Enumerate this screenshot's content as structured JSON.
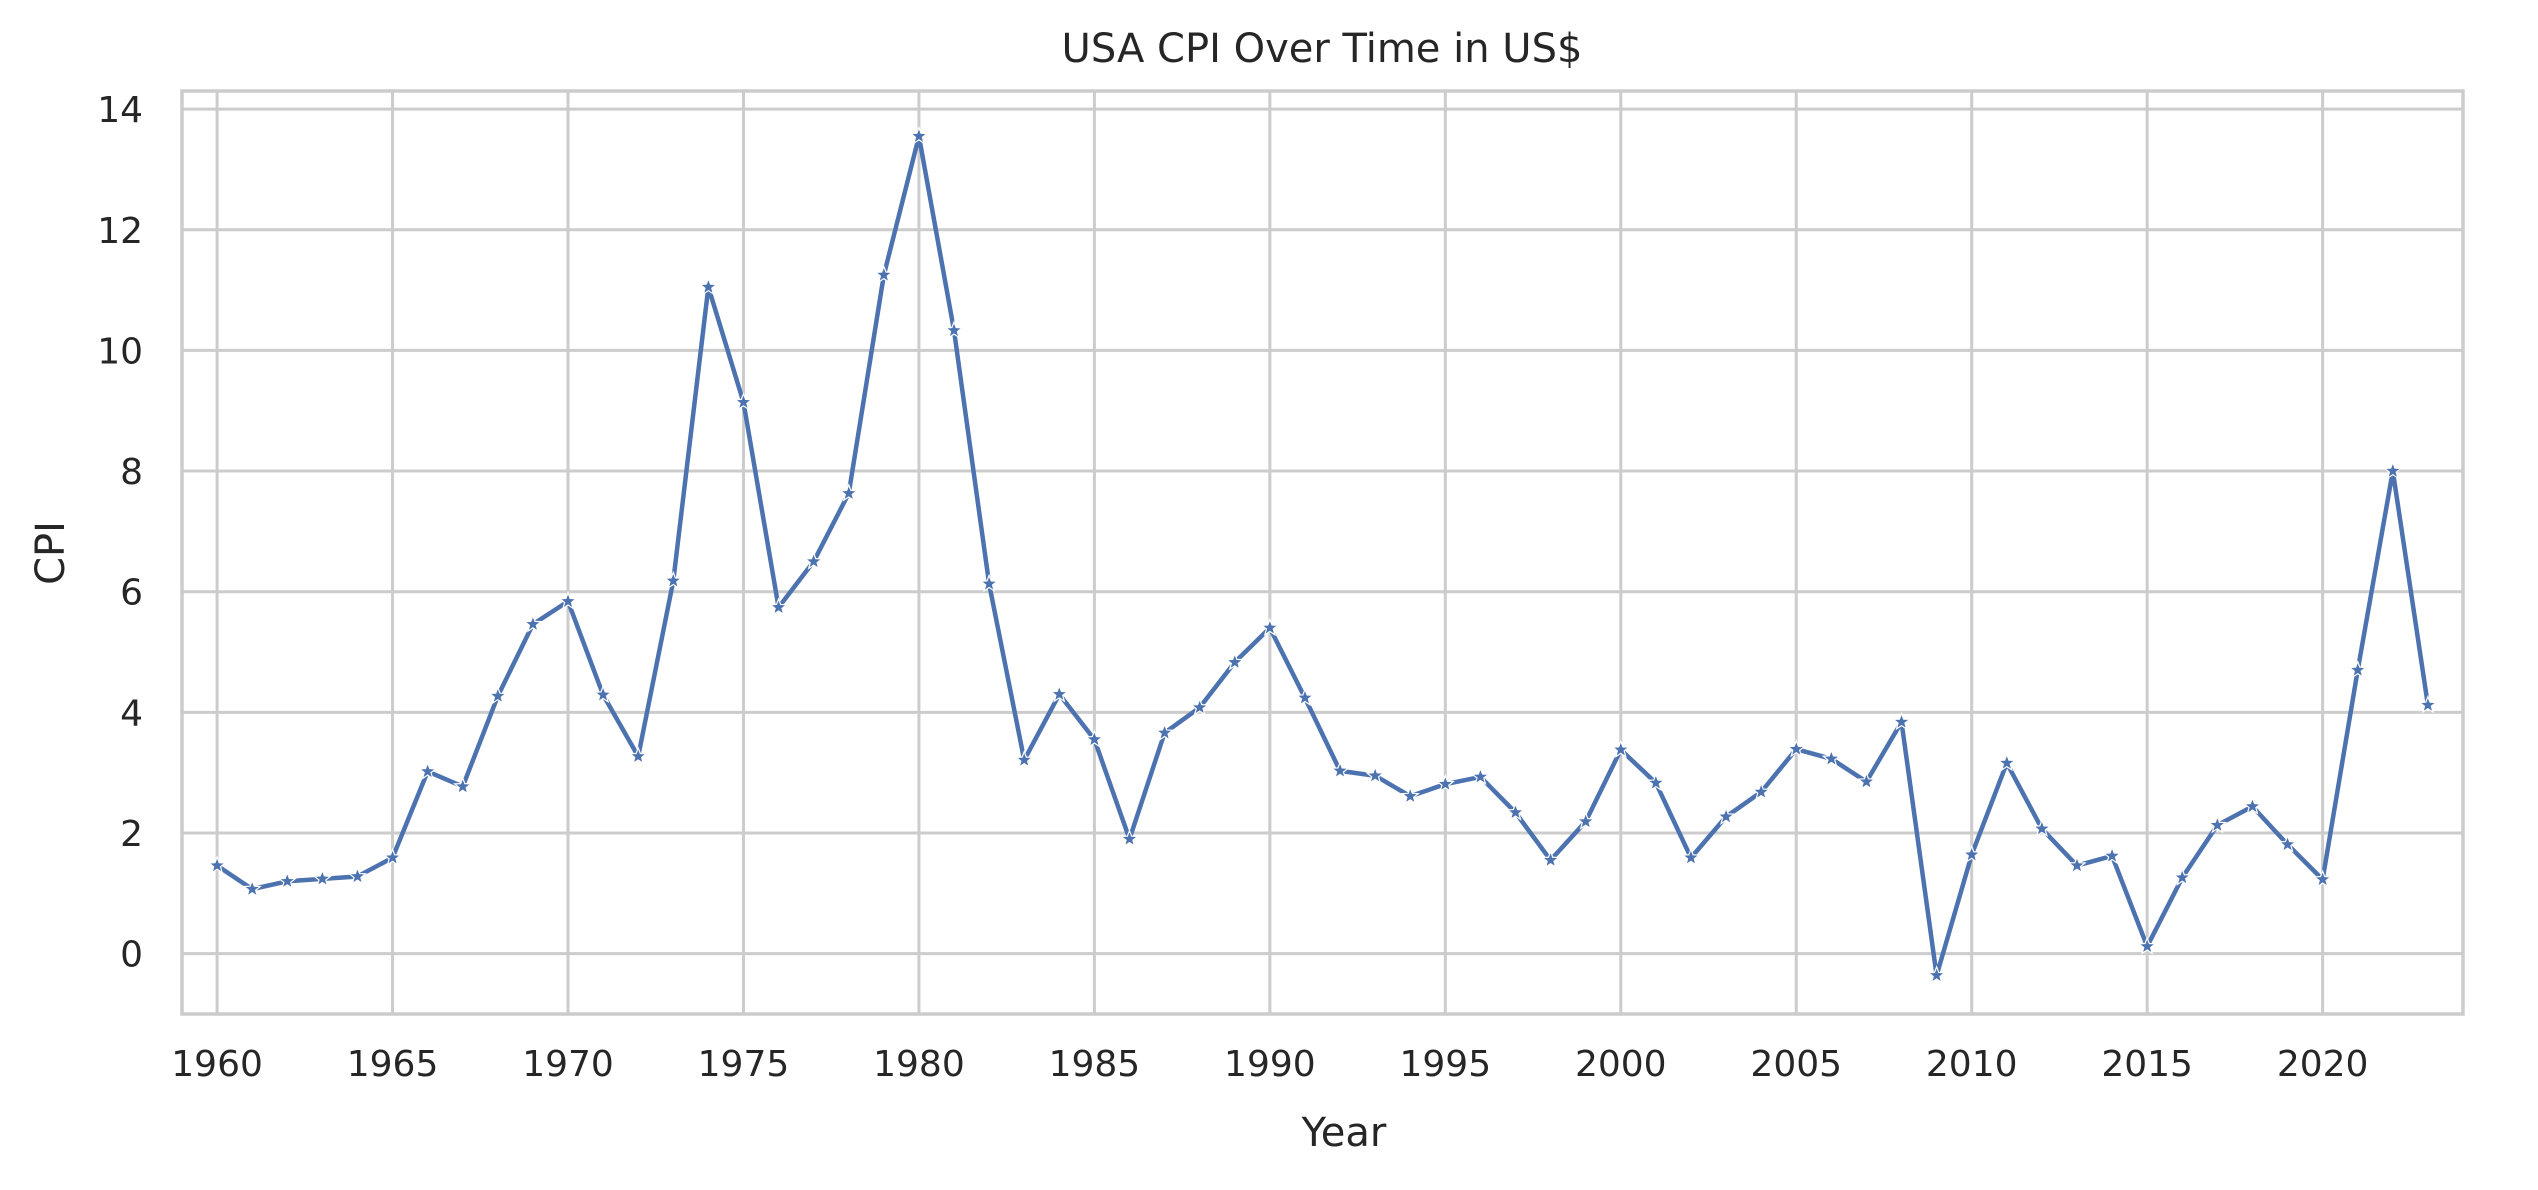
{
  "chart_data": {
    "type": "line",
    "title": "USA CPI Over Time in US$",
    "xlabel": "Year",
    "ylabel": "CPI",
    "xlim": [
      1959,
      2024
    ],
    "ylim": [
      -1,
      14.3
    ],
    "x_ticks": [
      1960,
      1965,
      1970,
      1975,
      1980,
      1985,
      1990,
      1995,
      2000,
      2005,
      2010,
      2015,
      2020
    ],
    "y_ticks": [
      0,
      2,
      4,
      6,
      8,
      10,
      12,
      14
    ],
    "grid": true,
    "legend": "none",
    "marker": "star",
    "series": [
      {
        "color": "#4c72b0",
        "x": [
          1960,
          1961,
          1962,
          1963,
          1964,
          1965,
          1966,
          1967,
          1968,
          1969,
          1970,
          1971,
          1972,
          1973,
          1974,
          1975,
          1976,
          1977,
          1978,
          1979,
          1980,
          1981,
          1982,
          1983,
          1984,
          1985,
          1986,
          1987,
          1988,
          1989,
          1990,
          1991,
          1992,
          1993,
          1994,
          1995,
          1996,
          1997,
          1998,
          1999,
          2000,
          2001,
          2002,
          2003,
          2004,
          2005,
          2006,
          2007,
          2008,
          2009,
          2010,
          2011,
          2012,
          2013,
          2014,
          2015,
          2016,
          2017,
          2018,
          2019,
          2020,
          2021,
          2022,
          2023
        ],
        "values": [
          1.46,
          1.07,
          1.2,
          1.24,
          1.28,
          1.59,
          3.02,
          2.77,
          4.27,
          5.46,
          5.84,
          4.29,
          3.27,
          6.18,
          11.05,
          9.14,
          5.74,
          6.5,
          7.63,
          11.25,
          13.55,
          10.33,
          6.13,
          3.21,
          4.3,
          3.55,
          1.9,
          3.66,
          4.08,
          4.83,
          5.4,
          4.24,
          3.03,
          2.95,
          2.61,
          2.81,
          2.93,
          2.34,
          1.55,
          2.19,
          3.38,
          2.83,
          1.59,
          2.27,
          2.68,
          3.39,
          3.23,
          2.85,
          3.84,
          -0.36,
          1.64,
          3.16,
          2.07,
          1.46,
          1.62,
          0.12,
          1.26,
          2.13,
          2.44,
          1.81,
          1.23,
          4.7,
          8.0,
          4.12
        ]
      }
    ]
  }
}
